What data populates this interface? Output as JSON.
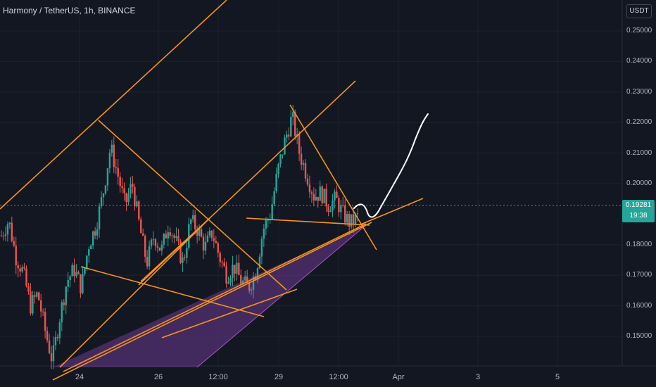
{
  "header": {
    "title": "Harmony / TetherUS, 1h, BINANCE",
    "currency": "USDT"
  },
  "price_tag": {
    "price": "0.19281",
    "countdown": "19:38"
  },
  "colors": {
    "up": "#26a69a",
    "down": "#ef5350",
    "trendline": "#f7931a",
    "drawing": "#ffffff",
    "channel_fill": "#6a3b8f"
  },
  "chart_data": {
    "type": "candlestick",
    "title": "Harmony / TetherUS, 1h, BINANCE",
    "ylim": [
      0.141,
      0.261
    ],
    "y_ticks": [
      {
        "value": 0.25,
        "label": "0.25000"
      },
      {
        "value": 0.24,
        "label": "0.24000"
      },
      {
        "value": 0.23,
        "label": "0.23000"
      },
      {
        "value": 0.22,
        "label": "0.22000"
      },
      {
        "value": 0.21,
        "label": "0.21000"
      },
      {
        "value": 0.2,
        "label": "0.20000"
      },
      {
        "value": 0.18,
        "label": "0.18000"
      },
      {
        "value": 0.17,
        "label": "0.17000"
      },
      {
        "value": 0.16,
        "label": "0.16000"
      },
      {
        "value": 0.15,
        "label": "0.15000"
      }
    ],
    "x_ticks": [
      "24",
      "26",
      "12:00",
      "29",
      "12:00",
      "Apr",
      "3",
      "5"
    ],
    "current_price": 0.19281,
    "price_path": [
      0.183,
      0.188,
      0.176,
      0.171,
      0.16,
      0.164,
      0.152,
      0.142,
      0.156,
      0.168,
      0.172,
      0.166,
      0.18,
      0.186,
      0.197,
      0.212,
      0.203,
      0.193,
      0.2,
      0.186,
      0.174,
      0.183,
      0.178,
      0.187,
      0.181,
      0.174,
      0.188,
      0.185,
      0.179,
      0.184,
      0.176,
      0.17,
      0.173,
      0.168,
      0.166,
      0.171,
      0.185,
      0.19,
      0.204,
      0.214,
      0.222,
      0.21,
      0.203,
      0.196,
      0.197,
      0.193,
      0.195,
      0.19,
      0.187,
      0.189
    ],
    "annotations": "orange trendlines, purple rising wedge, white hand-drawn projected path"
  }
}
